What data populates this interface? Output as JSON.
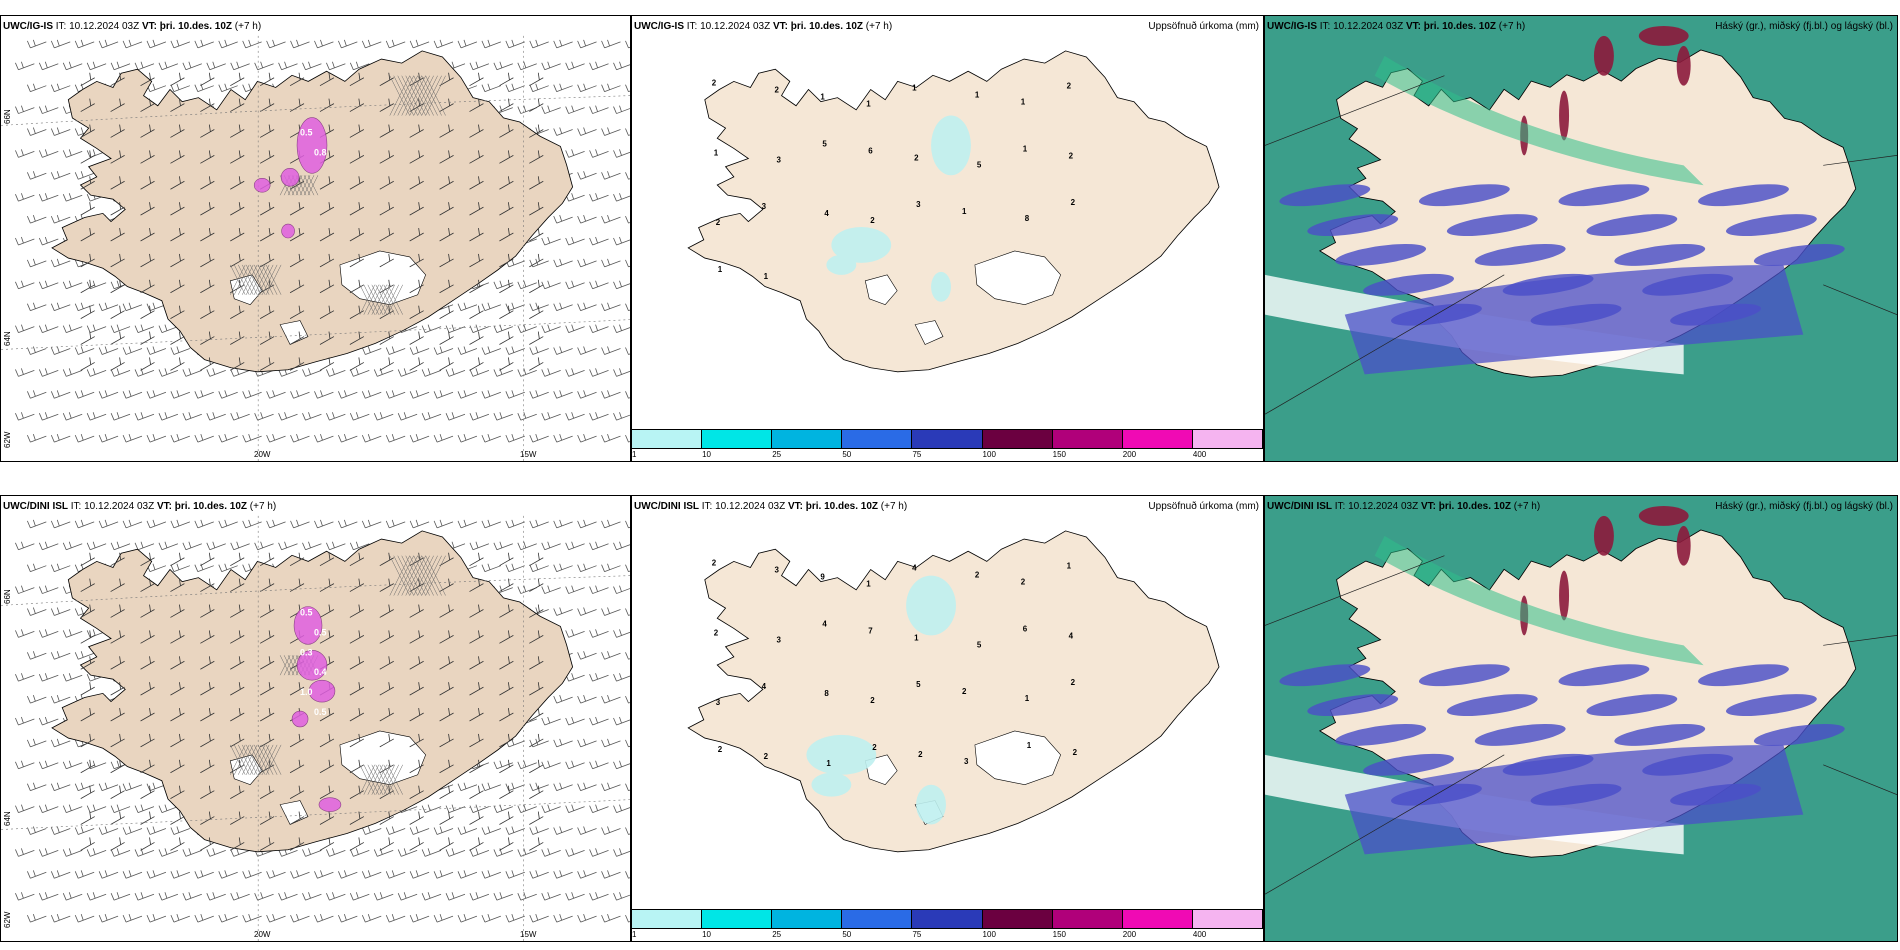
{
  "rows": [
    {
      "model": "UWC/IG-IS",
      "it_label": "IT:",
      "it_value": "10.12.2024 03Z",
      "vt_label": "VT:",
      "vt_value": "þri. 10.des. 10Z",
      "lead": "(+7 h)",
      "precip_labels": [
        "2",
        "2",
        "1",
        "1",
        "1",
        "1",
        "1",
        "2",
        "1",
        "3",
        "5",
        "6",
        "2",
        "5",
        "1",
        "2",
        "2",
        "3",
        "4",
        "2",
        "3",
        "1",
        "8",
        "2",
        "1",
        "1"
      ],
      "snow_labels": [
        "0.5",
        "0.8"
      ]
    },
    {
      "model": "UWC/DINI ISL",
      "it_label": "IT:",
      "it_value": "10.12.2024 03Z",
      "vt_label": "VT:",
      "vt_value": "þri. 10.des. 10Z",
      "lead": "(+7 h)",
      "precip_labels": [
        "2",
        "3",
        "9",
        "1",
        "4",
        "2",
        "2",
        "1",
        "2",
        "3",
        "4",
        "7",
        "1",
        "5",
        "6",
        "4",
        "3",
        "4",
        "8",
        "2",
        "5",
        "2",
        "1",
        "2",
        "2",
        "2",
        "1",
        "2",
        "2",
        "3",
        "1",
        "2"
      ],
      "snow_labels": [
        "0.5",
        "0.5",
        "0.3",
        "0.4",
        "1.0",
        "0.5"
      ]
    }
  ],
  "precip_title": "Uppsöfnuð úrkoma (mm)",
  "cloud_title": "Háský (gr.), miðský (fj.bl.) og lágský (bl.)",
  "lon_labels": [
    "20W",
    "15W"
  ],
  "lat_labels": [
    "66N",
    "64N",
    "62W"
  ],
  "colorbar": {
    "ticks": [
      "1",
      "10",
      "25",
      "50",
      "75",
      "100",
      "150",
      "200",
      "400"
    ],
    "colors": [
      "#b8f4f4",
      "#00e6e6",
      "#00b4e0",
      "#2a6be6",
      "#2a3ab8",
      "#6b0040",
      "#b0007a",
      "#f00ab4",
      "#f5b4f0"
    ]
  },
  "colors": {
    "land": "#f5e7d6",
    "land_left": "#e9d5c0",
    "ice": "#ffffff",
    "snow": "#e060e0",
    "precip": "#bff0f0",
    "cloud_low": "#3b9e8a",
    "cloud_mid": "#4b4fc8",
    "cloud_high": "#8c1a3c"
  }
}
